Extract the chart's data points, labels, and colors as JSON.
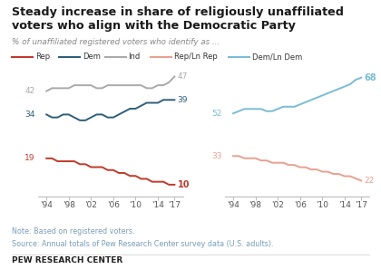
{
  "title_line1": "Steady increase in share of religiously unaffiliated",
  "title_line2": "voters who align with the Democratic Party",
  "subtitle": "% of unaffiliated registered voters who identify as ...",
  "note_line1": "Note: Based on registered voters.",
  "note_line2": "Source: Annual totals of Pew Research Center survey data (U.S. adults).",
  "footer": "PEW RESEARCH CENTER",
  "years": [
    1994,
    1995,
    1996,
    1997,
    1998,
    1999,
    2000,
    2001,
    2002,
    2003,
    2004,
    2005,
    2006,
    2007,
    2008,
    2009,
    2010,
    2011,
    2012,
    2013,
    2014,
    2015,
    2016,
    2017
  ],
  "rep": [
    19,
    19,
    18,
    18,
    18,
    18,
    17,
    17,
    16,
    16,
    16,
    15,
    15,
    14,
    14,
    13,
    13,
    12,
    12,
    11,
    11,
    11,
    10,
    10
  ],
  "dem": [
    34,
    33,
    33,
    34,
    34,
    33,
    32,
    32,
    33,
    34,
    34,
    33,
    33,
    34,
    35,
    36,
    36,
    37,
    38,
    38,
    38,
    39,
    39,
    39
  ],
  "ind": [
    42,
    43,
    43,
    43,
    43,
    44,
    44,
    44,
    44,
    43,
    43,
    44,
    44,
    44,
    44,
    44,
    44,
    44,
    43,
    43,
    44,
    44,
    45,
    47
  ],
  "rep_ln": [
    33,
    33,
    32,
    32,
    32,
    31,
    31,
    30,
    30,
    30,
    29,
    29,
    28,
    28,
    27,
    27,
    26,
    26,
    25,
    25,
    24,
    24,
    23,
    22
  ],
  "dem_ln": [
    52,
    53,
    54,
    54,
    54,
    54,
    53,
    53,
    54,
    55,
    55,
    55,
    56,
    57,
    58,
    59,
    60,
    61,
    62,
    63,
    64,
    65,
    67,
    68
  ],
  "rep_color": "#c0392b",
  "dem_color": "#2e5f7a",
  "ind_color": "#aaaaaa",
  "rep_ln_color": "#e8a090",
  "dem_ln_color": "#7bbcd5",
  "xtick_labels": [
    "'94",
    "'98",
    "'02",
    "'06",
    "'10",
    "'14",
    "'17"
  ],
  "xtick_positions": [
    1994,
    1998,
    2002,
    2006,
    2010,
    2014,
    2017
  ],
  "background_color": "#ffffff",
  "note_color": "#7a9db8",
  "footer_color": "#222222",
  "title_color": "#1a1a1a",
  "subtitle_color": "#888888"
}
